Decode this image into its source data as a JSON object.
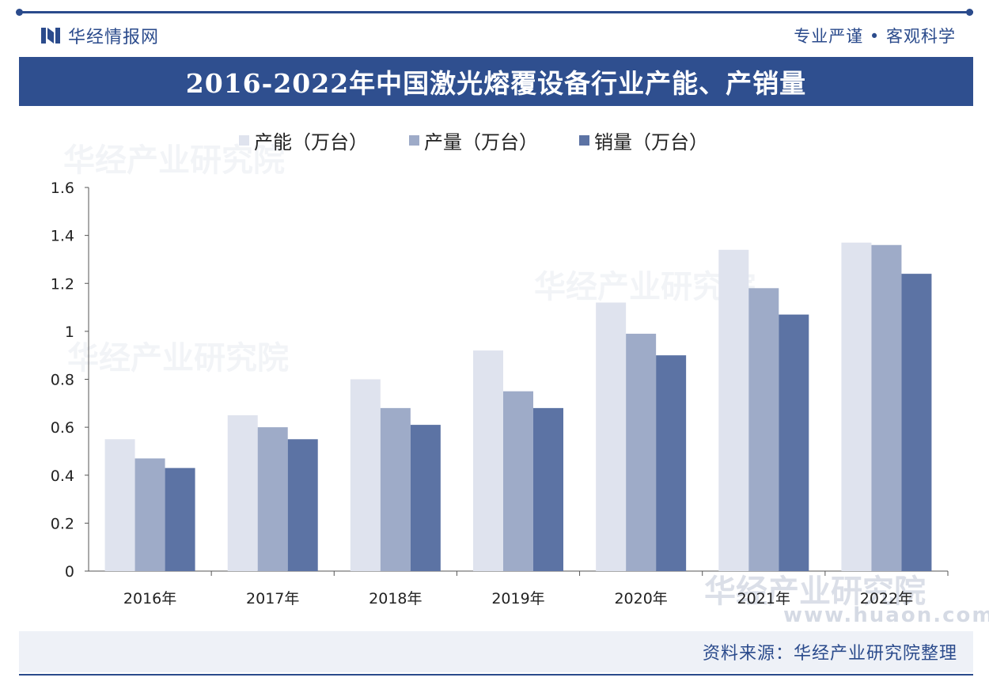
{
  "header": {
    "brand": "华经情报网",
    "slogan": "专业严谨 • 客观科学",
    "title": "2016-2022年中国激光熔覆设备行业产能、产销量"
  },
  "watermarks": [
    "华经产业研究院",
    "华经产业研究院",
    "华经产业研究院",
    "华经产业研究院"
  ],
  "watermark_url": "www.huaon.com",
  "footer": {
    "source": "资料来源：华经产业研究院整理"
  },
  "colors": {
    "accent": "#2f4f8f",
    "series": [
      "#dfe3ee",
      "#9eabc8",
      "#5c73a4"
    ]
  },
  "chart_data": {
    "type": "bar",
    "title": "2016-2022年中国激光熔覆设备行业产能、产销量",
    "categories": [
      "2016年",
      "2017年",
      "2018年",
      "2019年",
      "2020年",
      "2021年",
      "2022年"
    ],
    "series": [
      {
        "name": "产能（万台）",
        "values": [
          0.55,
          0.65,
          0.8,
          0.92,
          1.12,
          1.34,
          1.37
        ]
      },
      {
        "name": "产量（万台）",
        "values": [
          0.47,
          0.6,
          0.68,
          0.75,
          0.99,
          1.18,
          1.36
        ]
      },
      {
        "name": "销量（万台）",
        "values": [
          0.43,
          0.55,
          0.61,
          0.68,
          0.9,
          1.07,
          1.24
        ]
      }
    ],
    "y_ticks": [
      "0",
      "0.2",
      "0.4",
      "0.6",
      "0.8",
      "1",
      "1.2",
      "1.4",
      "1.6"
    ],
    "ylim": [
      0,
      1.6
    ],
    "legend_position": "top",
    "grid": false
  }
}
